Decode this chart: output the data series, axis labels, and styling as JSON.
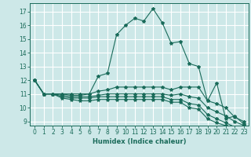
{
  "xlabel": "Humidex (Indice chaleur)",
  "background_color": "#cde8e8",
  "grid_color": "#ffffff",
  "line_color": "#1a6b5a",
  "xlim": [
    -0.5,
    23.5
  ],
  "ylim": [
    8.7,
    17.6
  ],
  "xticks": [
    0,
    1,
    2,
    3,
    4,
    5,
    6,
    7,
    8,
    9,
    10,
    11,
    12,
    13,
    14,
    15,
    16,
    17,
    18,
    19,
    20,
    21,
    22,
    23
  ],
  "yticks": [
    9,
    10,
    11,
    12,
    13,
    14,
    15,
    16,
    17
  ],
  "lines": [
    [
      12,
      11,
      11,
      11,
      11,
      11,
      11,
      12.3,
      12.5,
      15.3,
      16.0,
      16.5,
      16.3,
      17.2,
      16.2,
      14.7,
      14.8,
      13.2,
      13.0,
      10.5,
      11.8,
      9.2,
      9.4,
      8.8
    ],
    [
      12,
      11,
      11,
      11,
      10.9,
      10.9,
      11.0,
      11.2,
      11.3,
      11.5,
      11.5,
      11.5,
      11.5,
      11.5,
      11.5,
      11.3,
      11.5,
      11.5,
      11.5,
      10.5,
      10.3,
      10.0,
      9.3,
      9.0
    ],
    [
      12,
      11,
      11,
      10.9,
      10.8,
      10.8,
      10.8,
      10.9,
      11.0,
      11.0,
      11.0,
      11.0,
      11.0,
      11.0,
      11.0,
      10.9,
      11.0,
      10.8,
      10.7,
      10.0,
      9.7,
      9.4,
      9.0,
      8.7
    ],
    [
      12,
      11,
      11,
      10.8,
      10.7,
      10.7,
      10.7,
      10.8,
      10.8,
      10.8,
      10.8,
      10.8,
      10.8,
      10.8,
      10.8,
      10.6,
      10.6,
      10.3,
      10.2,
      9.5,
      9.2,
      8.9,
      8.6,
      8.4
    ],
    [
      12,
      11,
      11,
      10.7,
      10.6,
      10.5,
      10.5,
      10.6,
      10.6,
      10.6,
      10.6,
      10.6,
      10.6,
      10.6,
      10.6,
      10.4,
      10.4,
      10.0,
      9.9,
      9.2,
      8.9,
      8.7,
      8.4,
      8.2
    ]
  ]
}
